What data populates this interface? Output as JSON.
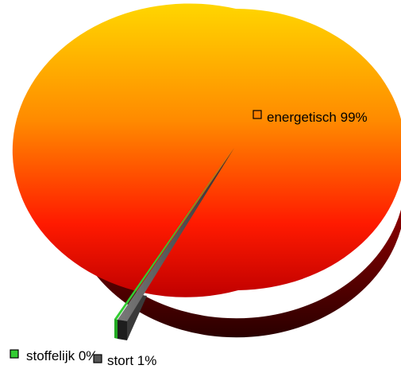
{
  "chart_data": {
    "type": "pie",
    "style": "3d-exploded",
    "slices": [
      {
        "name": "energetisch",
        "value": 99,
        "label": "energetisch 99%",
        "color": "#ff8000"
      },
      {
        "name": "stort",
        "value": 1,
        "label": "stort 1%",
        "color": "#555555"
      },
      {
        "name": "stoffelijk",
        "value": 0,
        "label": "stoffelijk 0%",
        "color": "#33cc33"
      }
    ]
  }
}
